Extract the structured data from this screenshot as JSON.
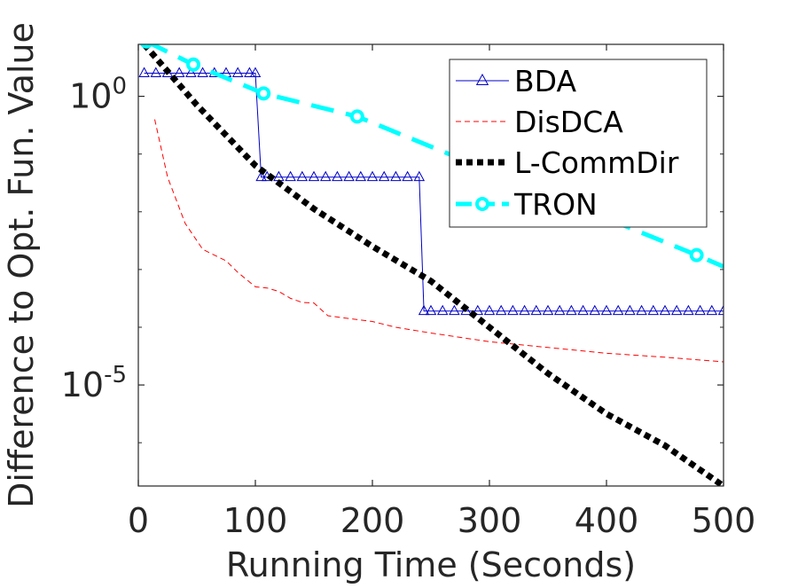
{
  "chart_data": {
    "type": "line",
    "xlabel": "Running Time (Seconds)",
    "ylabel": "Difference to Opt. Fun. Value",
    "xlim": [
      0,
      500
    ],
    "ylim_log10": [
      -6.75,
      0.9
    ],
    "yscale": "log",
    "grid": false,
    "legend_position": "top-right",
    "x_ticks": [
      0,
      100,
      200,
      300,
      400,
      500
    ],
    "y_ticks": [
      {
        "exponent": 0,
        "base": "10",
        "sup": "0"
      },
      {
        "exponent": -5,
        "base": "10",
        "sup": "-5"
      }
    ],
    "series": [
      {
        "name": "BDA",
        "color": "#0000c8",
        "style": "solid-triangle",
        "x": [
          5,
          15,
          25,
          35,
          45,
          55,
          65,
          75,
          85,
          95,
          100,
          105,
          110,
          120,
          130,
          140,
          150,
          160,
          170,
          180,
          190,
          200,
          210,
          220,
          230,
          240,
          244,
          250,
          260,
          270,
          280,
          290,
          300,
          310,
          320,
          330,
          340,
          350,
          360,
          370,
          380,
          390,
          400,
          410,
          420,
          430,
          440,
          450,
          460,
          470,
          480,
          490,
          500
        ],
        "log10y": [
          0.4,
          0.4,
          0.4,
          0.4,
          0.4,
          0.4,
          0.4,
          0.4,
          0.4,
          0.4,
          0.4,
          -1.4,
          -1.4,
          -1.4,
          -1.4,
          -1.4,
          -1.4,
          -1.4,
          -1.4,
          -1.4,
          -1.4,
          -1.4,
          -1.4,
          -1.4,
          -1.4,
          -1.4,
          -3.72,
          -3.72,
          -3.72,
          -3.72,
          -3.72,
          -3.72,
          -3.72,
          -3.72,
          -3.72,
          -3.72,
          -3.72,
          -3.72,
          -3.72,
          -3.72,
          -3.72,
          -3.72,
          -3.72,
          -3.72,
          -3.72,
          -3.72,
          -3.72,
          -3.72,
          -3.72,
          -3.72,
          -3.72,
          -3.72,
          -3.72
        ]
      },
      {
        "name": "DisDCA",
        "color": "#ff0000",
        "style": "dashed-thin",
        "x": [
          14,
          25,
          40,
          55,
          62,
          75,
          85,
          100,
          110,
          120,
          130,
          140,
          150,
          162,
          180,
          200,
          220,
          250,
          300,
          350,
          400,
          450,
          500
        ],
        "log10y": [
          -0.4,
          -1.4,
          -2.2,
          -2.65,
          -2.72,
          -2.85,
          -3.05,
          -3.3,
          -3.32,
          -3.38,
          -3.5,
          -3.57,
          -3.58,
          -3.8,
          -3.85,
          -3.9,
          -4.0,
          -4.1,
          -4.25,
          -4.35,
          -4.45,
          -4.52,
          -4.6
        ]
      },
      {
        "name": "L-CommDir",
        "color": "#000000",
        "style": "dotted-thick",
        "x": [
          5,
          50,
          100,
          150,
          200,
          250,
          300,
          350,
          400,
          450,
          500
        ],
        "log10y": [
          0.9,
          -0.15,
          -1.2,
          -1.95,
          -2.6,
          -3.2,
          -4.0,
          -4.8,
          -5.5,
          -6.05,
          -6.75
        ]
      },
      {
        "name": "TRON",
        "color": "#00ffff",
        "style": "dashed-circle",
        "x": [
          7,
          47,
          107,
          187,
          477,
          500
        ],
        "log10y": [
          0.95,
          0.55,
          0.05,
          -0.35,
          -2.75,
          -2.95
        ]
      }
    ]
  }
}
